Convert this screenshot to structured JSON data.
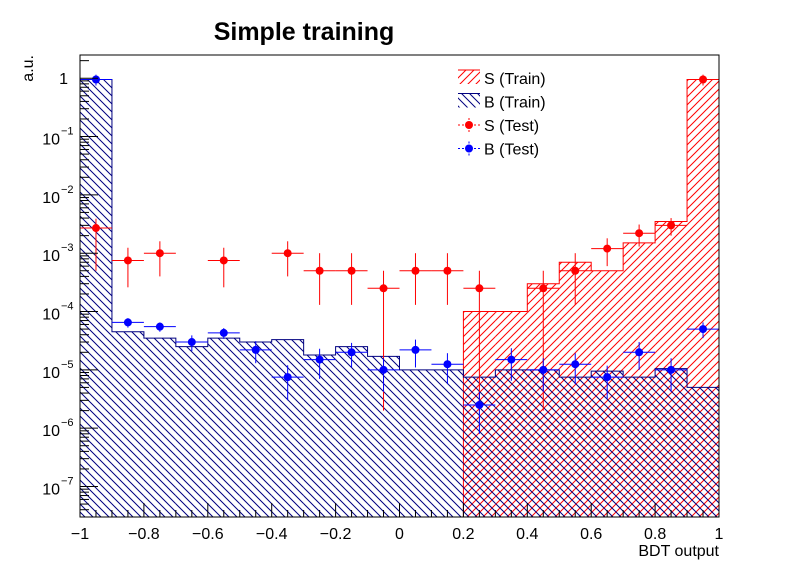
{
  "chart_data": {
    "type": "histogram",
    "title": "Simple training",
    "xlabel": "BDT output",
    "ylabel": "a.u.",
    "xlim": [
      -1,
      1
    ],
    "ylim": [
      3e-08,
      2.5
    ],
    "y_scale": "log",
    "grid": false,
    "legend_position": "top-right",
    "bin_edges": [
      -1.0,
      -0.9,
      -0.8,
      -0.7,
      -0.6,
      -0.5,
      -0.4,
      -0.3,
      -0.2,
      -0.1,
      0.0,
      0.1,
      0.2,
      0.3,
      0.4,
      0.5,
      0.6,
      0.7,
      0.8,
      0.9,
      1.0
    ],
    "x_ticks": [
      {
        "value": -1,
        "label": "−1"
      },
      {
        "value": -0.8,
        "label": "−0.8"
      },
      {
        "value": -0.6,
        "label": "−0.6"
      },
      {
        "value": -0.4,
        "label": "−0.4"
      },
      {
        "value": -0.2,
        "label": "−0.2"
      },
      {
        "value": 0,
        "label": "0"
      },
      {
        "value": 0.2,
        "label": "0.2"
      },
      {
        "value": 0.4,
        "label": "0.4"
      },
      {
        "value": 0.6,
        "label": "0.6"
      },
      {
        "value": 0.8,
        "label": "0.8"
      },
      {
        "value": 1,
        "label": "1"
      }
    ],
    "y_ticks": [
      {
        "value": 1e-07,
        "base": "10",
        "exp": "−7"
      },
      {
        "value": 1e-06,
        "base": "10",
        "exp": "−6"
      },
      {
        "value": 1e-05,
        "base": "10",
        "exp": "−5"
      },
      {
        "value": 0.0001,
        "base": "10",
        "exp": "−4"
      },
      {
        "value": 0.001,
        "base": "10",
        "exp": "−3"
      },
      {
        "value": 0.01,
        "base": "10",
        "exp": "−2"
      },
      {
        "value": 0.1,
        "base": "10",
        "exp": "−1"
      },
      {
        "value": 1,
        "base": "1",
        "exp": ""
      }
    ],
    "series": [
      {
        "name": "S (Train)",
        "kind": "hist",
        "color": "#ff0000",
        "hatch": "forward",
        "values": [
          0,
          0,
          0,
          0,
          0,
          0,
          0,
          0,
          0,
          0,
          0,
          0,
          0.0001,
          0.0001,
          0.0003,
          0.0007,
          0.0005,
          0.0015,
          0.0035,
          0.95
        ]
      },
      {
        "name": "B (Train)",
        "kind": "hist",
        "color": "#000080",
        "hatch": "backward",
        "values": [
          0.95,
          4.5e-05,
          3.5e-05,
          2.5e-05,
          3.5e-05,
          3e-05,
          3.3e-05,
          1.8e-05,
          2.5e-05,
          1.7e-05,
          1e-05,
          1e-05,
          7.5e-06,
          1e-05,
          1e-05,
          7.5e-06,
          9.5e-06,
          7.5e-06,
          1.05e-05,
          5e-06
        ]
      },
      {
        "name": "S (Test)",
        "kind": "points",
        "color": "#ff0000",
        "values": [
          0.0027,
          0.00075,
          0.001,
          0,
          0.00075,
          0,
          0.001,
          0.0005,
          0.0005,
          0.00025,
          0.0005,
          0.0005,
          0.00025,
          0,
          0.00025,
          0.0005,
          0.0012,
          0.0022,
          0.003,
          0.95
        ],
        "err_low": [
          0.0022,
          0.00049,
          0.0006,
          0,
          0.00049,
          0,
          0.0006,
          0.00037,
          0.00037,
          0.000248,
          0.00037,
          0.00037,
          0.000248,
          0,
          0.000248,
          0.00037,
          0.0006,
          0.0009,
          0.001,
          0.2
        ],
        "err_high": [
          0.0012,
          0.00049,
          0.0006,
          0,
          0.00049,
          0,
          0.0006,
          0.0005,
          0.0005,
          0.00025,
          0.0005,
          0.0005,
          0.00025,
          0,
          0.00025,
          0.0005,
          0.0006,
          0.0009,
          0.001,
          0.2
        ]
      },
      {
        "name": "B (Test)",
        "kind": "points",
        "color": "#0000ff",
        "values": [
          0.95,
          6.5e-05,
          5.5e-05,
          3e-05,
          4.3e-05,
          2.2e-05,
          7.5e-06,
          1.5e-05,
          2e-05,
          1e-05,
          2.2e-05,
          1.25e-05,
          2.5e-06,
          1.5e-05,
          1e-05,
          1.25e-05,
          7.5e-06,
          2e-05,
          1e-05,
          5e-05
        ],
        "err_low": [
          0.2,
          1.2e-05,
          1e-05,
          9e-06,
          9e-06,
          9e-06,
          4.5e-06,
          8e-06,
          9e-06,
          5.8e-06,
          1.1e-05,
          6.8e-06,
          1.7e-06,
          8.5e-06,
          5.8e-06,
          6.8e-06,
          4.3e-06,
          1e-05,
          5.8e-06,
          1.5e-05
        ],
        "err_high": [
          0.2,
          1.2e-05,
          1e-05,
          9e-06,
          9e-06,
          9e-06,
          4.5e-06,
          8e-06,
          9e-06,
          5.8e-06,
          1.1e-05,
          6.8e-06,
          1.7e-06,
          8.5e-06,
          5.8e-06,
          6.8e-06,
          4.3e-06,
          1e-05,
          5.8e-06,
          1.5e-05
        ]
      }
    ]
  }
}
